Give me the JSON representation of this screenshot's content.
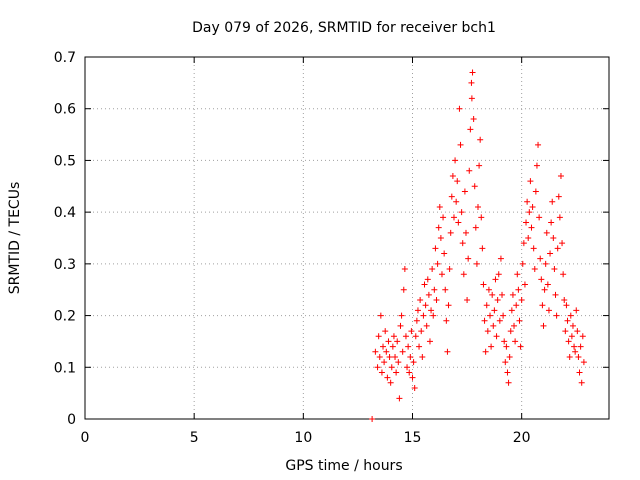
{
  "chart_data": {
    "type": "scatter",
    "title": "Day 079 of 2026, SRMTID for receiver bch1",
    "xlabel": "GPS time / hours",
    "ylabel": "SRMTID / TECUs",
    "xlim": [
      0,
      24
    ],
    "ylim": [
      0,
      0.7
    ],
    "xticks": [
      0,
      5,
      10,
      15,
      20
    ],
    "xtick_labels": [
      "0",
      "5",
      "10",
      "15",
      "20"
    ],
    "yticks": [
      0,
      0.1,
      0.2,
      0.3,
      0.4,
      0.5,
      0.6,
      0.7
    ],
    "ytick_labels": [
      "0",
      "0.1",
      "0.2",
      "0.3",
      "0.4",
      "0.5",
      "0.6",
      "0.7"
    ],
    "grid": true,
    "marker": "+",
    "color": "#ff0000",
    "series": [
      {
        "name": "SRMTID",
        "points": [
          [
            13.15,
            0.0
          ],
          [
            13.3,
            0.13
          ],
          [
            13.4,
            0.1
          ],
          [
            13.45,
            0.16
          ],
          [
            13.5,
            0.12
          ],
          [
            13.55,
            0.2
          ],
          [
            13.6,
            0.09
          ],
          [
            13.65,
            0.14
          ],
          [
            13.7,
            0.11
          ],
          [
            13.75,
            0.17
          ],
          [
            13.8,
            0.13
          ],
          [
            13.85,
            0.08
          ],
          [
            13.9,
            0.15
          ],
          [
            13.95,
            0.12
          ],
          [
            14.0,
            0.07
          ],
          [
            14.05,
            0.1
          ],
          [
            14.1,
            0.14
          ],
          [
            14.15,
            0.16
          ],
          [
            14.2,
            0.12
          ],
          [
            14.25,
            0.09
          ],
          [
            14.3,
            0.15
          ],
          [
            14.35,
            0.11
          ],
          [
            14.4,
            0.04
          ],
          [
            14.45,
            0.18
          ],
          [
            14.5,
            0.2
          ],
          [
            14.55,
            0.13
          ],
          [
            14.6,
            0.25
          ],
          [
            14.65,
            0.29
          ],
          [
            14.7,
            0.16
          ],
          [
            14.75,
            0.1
          ],
          [
            14.8,
            0.14
          ],
          [
            14.85,
            0.09
          ],
          [
            14.9,
            0.12
          ],
          [
            14.95,
            0.17
          ],
          [
            15.0,
            0.08
          ],
          [
            15.05,
            0.11
          ],
          [
            15.1,
            0.06
          ],
          [
            15.15,
            0.16
          ],
          [
            15.2,
            0.19
          ],
          [
            15.25,
            0.21
          ],
          [
            15.3,
            0.14
          ],
          [
            15.35,
            0.23
          ],
          [
            15.4,
            0.17
          ],
          [
            15.45,
            0.12
          ],
          [
            15.5,
            0.2
          ],
          [
            15.55,
            0.26
          ],
          [
            15.6,
            0.22
          ],
          [
            15.65,
            0.18
          ],
          [
            15.7,
            0.27
          ],
          [
            15.75,
            0.24
          ],
          [
            15.8,
            0.15
          ],
          [
            15.85,
            0.21
          ],
          [
            15.9,
            0.29
          ],
          [
            15.95,
            0.2
          ],
          [
            16.0,
            0.25
          ],
          [
            16.05,
            0.33
          ],
          [
            16.1,
            0.23
          ],
          [
            16.15,
            0.3
          ],
          [
            16.2,
            0.37
          ],
          [
            16.25,
            0.41
          ],
          [
            16.3,
            0.35
          ],
          [
            16.35,
            0.28
          ],
          [
            16.4,
            0.39
          ],
          [
            16.45,
            0.32
          ],
          [
            16.5,
            0.25
          ],
          [
            16.55,
            0.19
          ],
          [
            16.6,
            0.13
          ],
          [
            16.65,
            0.22
          ],
          [
            16.7,
            0.29
          ],
          [
            16.75,
            0.36
          ],
          [
            16.8,
            0.43
          ],
          [
            16.85,
            0.47
          ],
          [
            16.9,
            0.39
          ],
          [
            16.95,
            0.5
          ],
          [
            17.0,
            0.42
          ],
          [
            17.05,
            0.46
          ],
          [
            17.1,
            0.38
          ],
          [
            17.15,
            0.6
          ],
          [
            17.2,
            0.53
          ],
          [
            17.25,
            0.4
          ],
          [
            17.3,
            0.34
          ],
          [
            17.35,
            0.28
          ],
          [
            17.4,
            0.44
          ],
          [
            17.45,
            0.36
          ],
          [
            17.5,
            0.23
          ],
          [
            17.55,
            0.31
          ],
          [
            17.6,
            0.48
          ],
          [
            17.65,
            0.56
          ],
          [
            17.7,
            0.65
          ],
          [
            17.72,
            0.62
          ],
          [
            17.75,
            0.67
          ],
          [
            17.8,
            0.58
          ],
          [
            17.85,
            0.45
          ],
          [
            17.9,
            0.37
          ],
          [
            17.95,
            0.3
          ],
          [
            18.0,
            0.41
          ],
          [
            18.05,
            0.49
          ],
          [
            18.1,
            0.54
          ],
          [
            18.15,
            0.39
          ],
          [
            18.2,
            0.33
          ],
          [
            18.25,
            0.26
          ],
          [
            18.3,
            0.19
          ],
          [
            18.35,
            0.13
          ],
          [
            18.4,
            0.22
          ],
          [
            18.45,
            0.17
          ],
          [
            18.5,
            0.25
          ],
          [
            18.55,
            0.2
          ],
          [
            18.6,
            0.14
          ],
          [
            18.65,
            0.24
          ],
          [
            18.7,
            0.18
          ],
          [
            18.75,
            0.21
          ],
          [
            18.8,
            0.27
          ],
          [
            18.85,
            0.16
          ],
          [
            18.9,
            0.23
          ],
          [
            18.95,
            0.28
          ],
          [
            19.0,
            0.19
          ],
          [
            19.05,
            0.31
          ],
          [
            19.1,
            0.24
          ],
          [
            19.15,
            0.2
          ],
          [
            19.2,
            0.15
          ],
          [
            19.25,
            0.11
          ],
          [
            19.3,
            0.14
          ],
          [
            19.35,
            0.09
          ],
          [
            19.4,
            0.07
          ],
          [
            19.45,
            0.12
          ],
          [
            19.5,
            0.17
          ],
          [
            19.55,
            0.21
          ],
          [
            19.6,
            0.24
          ],
          [
            19.65,
            0.18
          ],
          [
            19.7,
            0.15
          ],
          [
            19.75,
            0.22
          ],
          [
            19.8,
            0.28
          ],
          [
            19.85,
            0.25
          ],
          [
            19.9,
            0.19
          ],
          [
            19.95,
            0.14
          ],
          [
            20.0,
            0.23
          ],
          [
            20.05,
            0.3
          ],
          [
            20.1,
            0.34
          ],
          [
            20.15,
            0.26
          ],
          [
            20.2,
            0.38
          ],
          [
            20.25,
            0.42
          ],
          [
            20.3,
            0.35
          ],
          [
            20.35,
            0.4
          ],
          [
            20.4,
            0.46
          ],
          [
            20.45,
            0.37
          ],
          [
            20.5,
            0.41
          ],
          [
            20.55,
            0.33
          ],
          [
            20.6,
            0.29
          ],
          [
            20.65,
            0.44
          ],
          [
            20.7,
            0.49
          ],
          [
            20.75,
            0.53
          ],
          [
            20.8,
            0.39
          ],
          [
            20.85,
            0.31
          ],
          [
            20.9,
            0.27
          ],
          [
            20.95,
            0.22
          ],
          [
            21.0,
            0.18
          ],
          [
            21.05,
            0.25
          ],
          [
            21.1,
            0.3
          ],
          [
            21.15,
            0.36
          ],
          [
            21.2,
            0.26
          ],
          [
            21.25,
            0.21
          ],
          [
            21.3,
            0.32
          ],
          [
            21.35,
            0.38
          ],
          [
            21.4,
            0.42
          ],
          [
            21.45,
            0.35
          ],
          [
            21.5,
            0.29
          ],
          [
            21.55,
            0.24
          ],
          [
            21.6,
            0.2
          ],
          [
            21.65,
            0.33
          ],
          [
            21.7,
            0.43
          ],
          [
            21.75,
            0.39
          ],
          [
            21.8,
            0.47
          ],
          [
            21.85,
            0.34
          ],
          [
            21.9,
            0.28
          ],
          [
            21.95,
            0.23
          ],
          [
            22.0,
            0.17
          ],
          [
            22.05,
            0.22
          ],
          [
            22.1,
            0.19
          ],
          [
            22.15,
            0.15
          ],
          [
            22.2,
            0.12
          ],
          [
            22.25,
            0.2
          ],
          [
            22.3,
            0.16
          ],
          [
            22.35,
            0.18
          ],
          [
            22.4,
            0.14
          ],
          [
            22.45,
            0.13
          ],
          [
            22.5,
            0.21
          ],
          [
            22.55,
            0.17
          ],
          [
            22.6,
            0.12
          ],
          [
            22.65,
            0.09
          ],
          [
            22.7,
            0.14
          ],
          [
            22.75,
            0.07
          ],
          [
            22.8,
            0.16
          ],
          [
            22.85,
            0.11
          ]
        ]
      }
    ]
  }
}
